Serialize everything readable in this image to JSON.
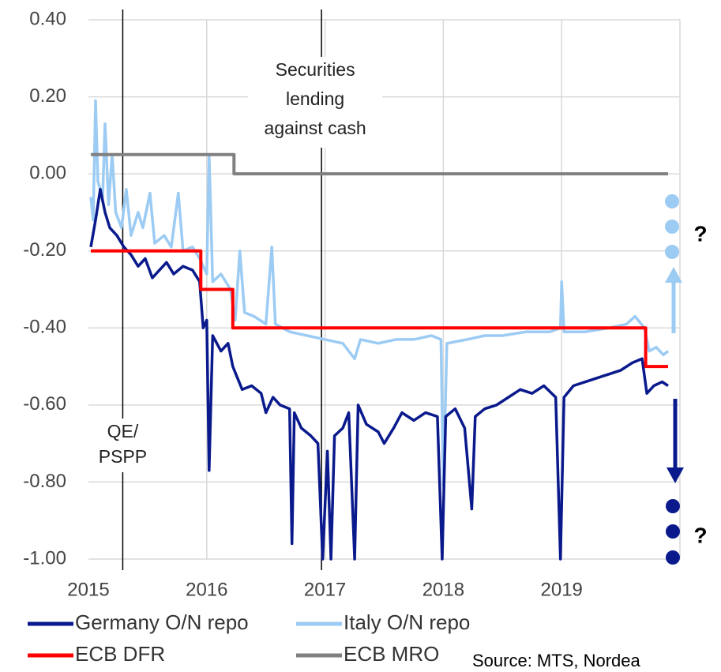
{
  "chart_data": {
    "type": "line",
    "source": "Source: MTS, Nordea",
    "xlim": [
      2015,
      2020
    ],
    "xticks": [
      2015,
      2016,
      2017,
      2018,
      2019
    ],
    "ylim": [
      -1.0,
      0.4
    ],
    "yticks": [
      {
        "value": 0.4,
        "label": "0.40"
      },
      {
        "value": 0.2,
        "label": "0.20"
      },
      {
        "value": 0,
        "label": "0.00"
      },
      {
        "value": -0.2,
        "label": "-0.20"
      },
      {
        "value": -0.4,
        "label": "-0.40"
      },
      {
        "value": -0.6,
        "label": "-0.60"
      },
      {
        "value": -0.8,
        "label": "-0.80"
      },
      {
        "value": -1.0,
        "label": "-1.00"
      }
    ],
    "grid": true,
    "annotations": [
      {
        "x": 2016.97,
        "lines": [
          "Securities",
          "lending",
          "against cash"
        ]
      },
      {
        "x": 2015.29,
        "lines": [
          "QE/",
          "PSPP"
        ]
      }
    ],
    "question_marks": [
      "?",
      "?"
    ],
    "series": [
      {
        "name": "Germany O/N repo",
        "color": "#0a1a8c",
        "x": [
          2015.02,
          2015.06,
          2015.1,
          2015.14,
          2015.18,
          2015.24,
          2015.3,
          2015.36,
          2015.42,
          2015.48,
          2015.54,
          2015.6,
          2015.66,
          2015.72,
          2015.8,
          2015.88,
          2015.94,
          2015.97,
          2016.0,
          2016.02,
          2016.05,
          2016.12,
          2016.18,
          2016.22,
          2016.26,
          2016.3,
          2016.38,
          2016.46,
          2016.5,
          2016.56,
          2016.62,
          2016.7,
          2016.72,
          2016.74,
          2016.8,
          2016.88,
          2016.94,
          2016.98,
          2017.02,
          2017.05,
          2017.08,
          2017.15,
          2017.2,
          2017.25,
          2017.28,
          2017.35,
          2017.45,
          2017.5,
          2017.58,
          2017.65,
          2017.75,
          2017.85,
          2017.95,
          2017.99,
          2018.02,
          2018.1,
          2018.18,
          2018.24,
          2018.27,
          2018.35,
          2018.45,
          2018.55,
          2018.65,
          2018.75,
          2018.85,
          2018.95,
          2018.99,
          2019.02,
          2019.1,
          2019.2,
          2019.3,
          2019.4,
          2019.5,
          2019.6,
          2019.68,
          2019.72,
          2019.78,
          2019.85,
          2019.9
        ],
        "values": [
          -0.19,
          -0.12,
          -0.04,
          -0.1,
          -0.14,
          -0.16,
          -0.19,
          -0.21,
          -0.24,
          -0.22,
          -0.27,
          -0.25,
          -0.23,
          -0.26,
          -0.24,
          -0.25,
          -0.28,
          -0.4,
          -0.38,
          -0.77,
          -0.42,
          -0.46,
          -0.44,
          -0.5,
          -0.53,
          -0.56,
          -0.55,
          -0.57,
          -0.62,
          -0.58,
          -0.6,
          -0.61,
          -0.96,
          -0.62,
          -0.66,
          -0.68,
          -0.7,
          -1.0,
          -0.72,
          -1.0,
          -0.68,
          -0.66,
          -0.62,
          -1.0,
          -0.6,
          -0.65,
          -0.67,
          -0.7,
          -0.66,
          -0.62,
          -0.64,
          -0.62,
          -0.63,
          -1.0,
          -0.63,
          -0.61,
          -0.66,
          -0.87,
          -0.63,
          -0.61,
          -0.6,
          -0.58,
          -0.56,
          -0.57,
          -0.55,
          -0.58,
          -1.0,
          -0.58,
          -0.55,
          -0.54,
          -0.53,
          -0.52,
          -0.51,
          -0.49,
          -0.48,
          -0.57,
          -0.55,
          -0.54,
          -0.55
        ]
      },
      {
        "name": "Italy O/N repo",
        "color": "#9ccbf3",
        "x": [
          2015.02,
          2015.04,
          2015.06,
          2015.08,
          2015.12,
          2015.14,
          2015.17,
          2015.2,
          2015.23,
          2015.28,
          2015.32,
          2015.36,
          2015.42,
          2015.46,
          2015.52,
          2015.56,
          2015.64,
          2015.7,
          2015.76,
          2015.8,
          2015.88,
          2015.94,
          2016.0,
          2016.02,
          2016.05,
          2016.12,
          2016.2,
          2016.24,
          2016.28,
          2016.32,
          2016.4,
          2016.5,
          2016.55,
          2016.58,
          2016.7,
          2016.85,
          2017.0,
          2017.15,
          2017.25,
          2017.3,
          2017.45,
          2017.6,
          2017.75,
          2017.9,
          2017.98,
          2018.0,
          2018.03,
          2018.2,
          2018.35,
          2018.5,
          2018.7,
          2018.9,
          2018.99,
          2019.0,
          2019.02,
          2019.2,
          2019.4,
          2019.55,
          2019.62,
          2019.7,
          2019.74,
          2019.8,
          2019.86,
          2019.9
        ],
        "values": [
          -0.06,
          -0.12,
          0.19,
          -0.02,
          -0.06,
          0.13,
          -0.08,
          0.05,
          -0.1,
          -0.14,
          -0.04,
          -0.16,
          -0.1,
          -0.14,
          -0.05,
          -0.18,
          -0.16,
          -0.19,
          -0.05,
          -0.2,
          -0.19,
          -0.22,
          -0.26,
          0.05,
          -0.28,
          -0.26,
          -0.3,
          -0.38,
          -0.2,
          -0.36,
          -0.37,
          -0.39,
          -0.19,
          -0.39,
          -0.41,
          -0.42,
          -0.43,
          -0.44,
          -0.48,
          -0.43,
          -0.44,
          -0.43,
          -0.43,
          -0.42,
          -0.43,
          -0.81,
          -0.44,
          -0.43,
          -0.42,
          -0.42,
          -0.41,
          -0.41,
          -0.4,
          -0.28,
          -0.41,
          -0.41,
          -0.4,
          -0.39,
          -0.37,
          -0.4,
          -0.46,
          -0.45,
          -0.47,
          -0.46
        ]
      },
      {
        "name": "ECB DFR",
        "color": "#ff0000",
        "x": [
          2015.02,
          2015.95,
          2015.95,
          2016.22,
          2016.22,
          2019.71,
          2019.71,
          2019.9
        ],
        "values": [
          -0.2,
          -0.2,
          -0.3,
          -0.3,
          -0.4,
          -0.4,
          -0.5,
          -0.5
        ]
      },
      {
        "name": "ECB MRO",
        "color": "#808080",
        "x": [
          2015.02,
          2016.23,
          2016.23,
          2019.9
        ],
        "values": [
          0.05,
          0.05,
          0,
          0
        ]
      }
    ]
  }
}
